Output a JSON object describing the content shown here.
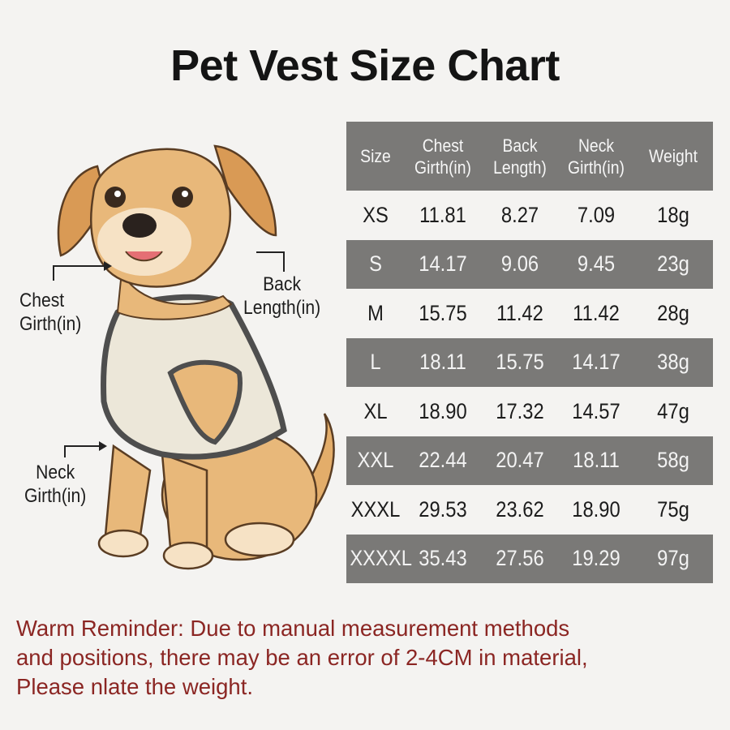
{
  "title": "Pet Vest Size Chart",
  "labels": {
    "chest": "Chest\nGirth(in)",
    "back": "Back\nLength(in)",
    "neck": "Neck\nGirth(in)"
  },
  "table": {
    "headers": [
      "Size",
      "Chest Girth(in)",
      "Back Length)",
      "Neck Girth(in)",
      "Weight"
    ],
    "rows": [
      [
        "XS",
        "11.81",
        "8.27",
        "7.09",
        "18g"
      ],
      [
        "S",
        "14.17",
        "9.06",
        "9.45",
        "23g"
      ],
      [
        "M",
        "15.75",
        "11.42",
        "11.42",
        "28g"
      ],
      [
        "L",
        "18.11",
        "15.75",
        "14.17",
        "38g"
      ],
      [
        "XL",
        "18.90",
        "17.32",
        "14.57",
        "47g"
      ],
      [
        "XXL",
        "22.44",
        "20.47",
        "18.11",
        "58g"
      ],
      [
        "XXXL",
        "29.53",
        "23.62",
        "18.90",
        "75g"
      ],
      [
        "XXXXL",
        "35.43",
        "27.56",
        "19.29",
        "97g"
      ]
    ]
  },
  "reminder": "Warm Reminder: Due to manual measurement methods\nand positions, there may be an error of 2-4CM in material,\nPlease nlate the weight.",
  "colors": {
    "row_shade": "#7a7977",
    "reminder_text": "#8b2623",
    "dog_fur": "#e8b87a",
    "vest": "#ece7d9"
  }
}
